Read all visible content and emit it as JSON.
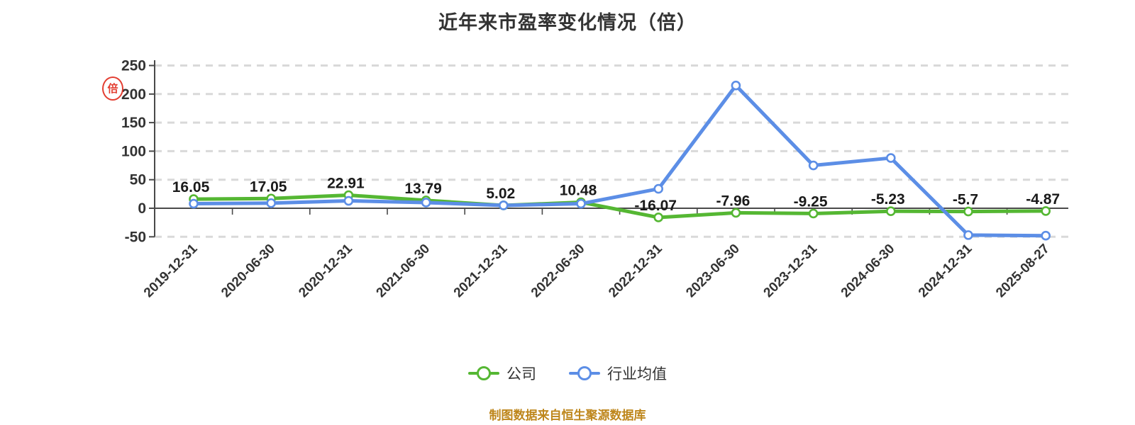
{
  "title": "近年来市盈率变化情况（倍）",
  "footer": "制图数据来自恒生聚源数据库",
  "stamp": {
    "glyph": "倍",
    "color": "#E02A1C"
  },
  "legend": [
    {
      "label": "公司",
      "color": "#55B733"
    },
    {
      "label": "行业均值",
      "color": "#5C8EE6"
    }
  ],
  "colors": {
    "company_line": "#55B733",
    "industry_line": "#5C8EE6",
    "marker_fill": "#ffffff",
    "grid": "#D9D9D9",
    "axis": "#4A4A4A",
    "tick_label": "#333333",
    "data_label": "#1A1A1A",
    "title_text": "#333333",
    "footer_text": "#BE861B",
    "stamp_red": "#E02A1C"
  },
  "chart_data": {
    "type": "line",
    "title": "近年来市盈率变化情况（倍）",
    "categories": [
      "2019-12-31",
      "2020-06-30",
      "2020-12-31",
      "2021-06-30",
      "2021-12-31",
      "2022-06-30",
      "2022-12-31",
      "2023-06-30",
      "2023-12-31",
      "2024-06-30",
      "2024-12-31",
      "2025-08-27"
    ],
    "series": [
      {
        "name": "公司",
        "color": "#55B733",
        "values": [
          16.05,
          17.05,
          22.91,
          13.79,
          5.02,
          10.48,
          -16.07,
          -7.96,
          -9.25,
          -5.23,
          -5.7,
          -4.87
        ],
        "labels": [
          "16.05",
          "17.05",
          "22.91",
          "13.79",
          "5.02",
          "10.48",
          "-16.07",
          "-7.96",
          "-9.25",
          "-5.23",
          "-5.7",
          "-4.87"
        ]
      },
      {
        "name": "行业均值",
        "color": "#5C8EE6",
        "values": [
          8,
          9,
          13,
          10,
          5,
          8,
          34,
          215,
          75,
          88,
          -47,
          -48
        ]
      }
    ],
    "yticks": [
      250,
      200,
      150,
      100,
      50,
      0,
      -50
    ],
    "ylim": [
      -50,
      250
    ],
    "xlabel": "",
    "ylabel": "",
    "grid": "dashed-horizontal",
    "legend_position": "bottom",
    "value_labels_series": "公司"
  }
}
